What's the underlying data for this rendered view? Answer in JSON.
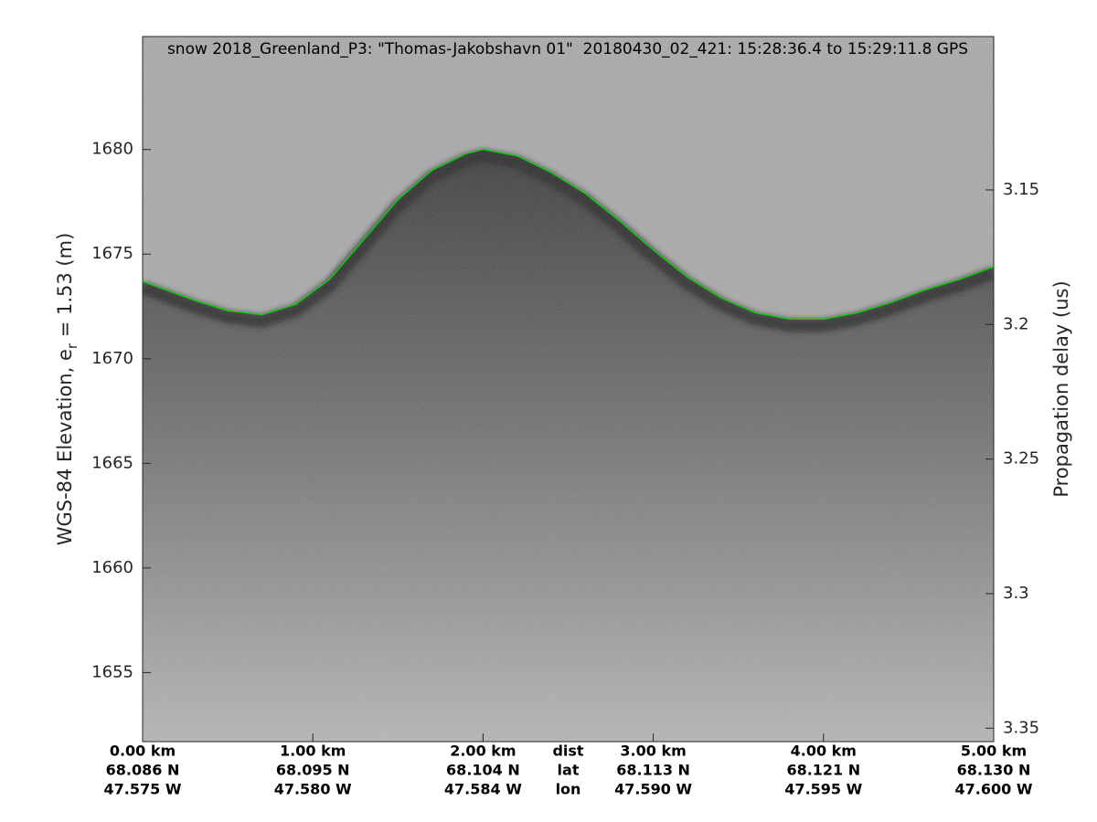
{
  "chart_data": {
    "type": "line",
    "title": "snow 2018_Greenland_P3: \"Thomas-Jakobshavn 01\"  20180430_02_421: 15:28:36.4 to 15:29:11.8 GPS",
    "ylabel": {
      "main": "WGS-84 Elevation, e",
      "subscript": "r",
      "rest": " = 1.53 (m)"
    },
    "y2label": "Propagation delay (us)",
    "x": [
      0,
      0.3,
      0.5,
      0.7,
      0.9,
      1.1,
      1.3,
      1.5,
      1.7,
      1.9,
      2.0,
      2.2,
      2.4,
      2.6,
      2.8,
      3.0,
      3.2,
      3.4,
      3.6,
      3.8,
      4.0,
      4.2,
      4.4,
      4.6,
      4.8,
      5.0
    ],
    "values": [
      1673.7,
      1672.8,
      1672.3,
      1672.1,
      1672.6,
      1673.8,
      1675.7,
      1677.6,
      1679.0,
      1679.8,
      1680.0,
      1679.7,
      1678.9,
      1677.9,
      1676.6,
      1675.2,
      1673.9,
      1672.9,
      1672.2,
      1671.9,
      1671.9,
      1672.2,
      1672.7,
      1673.3,
      1673.8,
      1674.4
    ],
    "color": "#00e000",
    "xlim": [
      0,
      5
    ],
    "xticks": [
      {
        "value": 0,
        "label": "0.00 km"
      },
      {
        "value": 1,
        "label": "1.00 km"
      },
      {
        "value": 2,
        "label": "2.00 km"
      },
      {
        "value": 3,
        "label": "3.00 km"
      },
      {
        "value": 4,
        "label": "4.00 km"
      },
      {
        "value": 5,
        "label": "5.00 km"
      }
    ],
    "lat_labels": [
      "68.086 N",
      "68.095 N",
      "68.104 N",
      "68.113 N",
      "68.121 N",
      "68.130 N"
    ],
    "lon_labels": [
      "47.575 W",
      "47.580 W",
      "47.584 W",
      "47.590 W",
      "47.595 W",
      "47.600 W"
    ],
    "row_labels": [
      "dist",
      "lat",
      "lon"
    ],
    "ylim": [
      1651.7,
      1685.4
    ],
    "yticks": [
      1655,
      1660,
      1665,
      1670,
      1675,
      1680
    ],
    "y2lim": [
      3.355,
      3.093
    ],
    "y2ticks": [
      3.15,
      3.2,
      3.25,
      3.3,
      3.35
    ]
  }
}
